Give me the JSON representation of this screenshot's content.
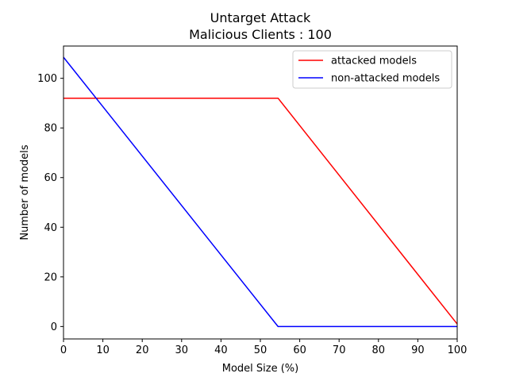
{
  "chart_data": {
    "type": "line",
    "title": "Untarget Attack",
    "subtitle": "Malicious Clients : 100",
    "xlabel": "Model Size (%)",
    "ylabel": "Number of models",
    "xlim": [
      0,
      100
    ],
    "ylim": [
      -5,
      113
    ],
    "xticks": [
      0,
      10,
      20,
      30,
      40,
      50,
      60,
      70,
      80,
      90,
      100
    ],
    "yticks": [
      0,
      20,
      40,
      60,
      80,
      100
    ],
    "grid": false,
    "legend_position": "top-right",
    "series": [
      {
        "name": "attacked models",
        "color": "#ff0000",
        "x": [
          0,
          54.5,
          100
        ],
        "y": [
          92,
          92,
          1
        ]
      },
      {
        "name": "non-attacked models",
        "color": "#0000ff",
        "x": [
          0,
          54.5,
          100
        ],
        "y": [
          108.5,
          0,
          0
        ]
      }
    ]
  }
}
